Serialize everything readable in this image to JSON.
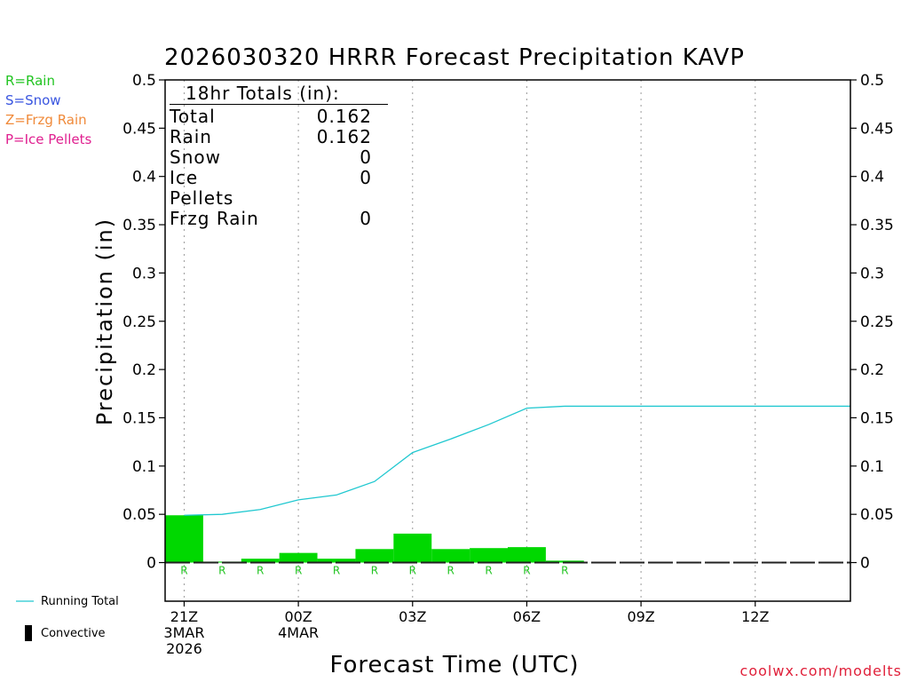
{
  "title": "2026030320 HRRR Forecast Precipitation KAVP",
  "legend_keys": [
    {
      "label": "R=Rain",
      "color": "#22c422"
    },
    {
      "label": "S=Snow",
      "color": "#3a56e0"
    },
    {
      "label": "Z=Frzg Rain",
      "color": "#f08a3a"
    },
    {
      "label": "P=Ice Pellets",
      "color": "#e02090"
    }
  ],
  "totals": {
    "header": "18hr Totals (in):",
    "rows": [
      {
        "label": "Total",
        "value": "0.162"
      },
      {
        "label": "Rain",
        "value": "0.162"
      },
      {
        "label": "Snow",
        "value": "0"
      },
      {
        "label": "Ice Pellets",
        "value": "0"
      },
      {
        "label": "Frzg Rain",
        "value": "0"
      }
    ]
  },
  "bottom_legend": {
    "running_total": "Running Total",
    "convective": "Convective"
  },
  "credit": "coolwx.com/modelts",
  "colors": {
    "rain_bar": "#00d800",
    "running_total": "#20c8d0",
    "rain_letter": "#22c422"
  },
  "chart_data": {
    "type": "bar",
    "title": "2026030320 HRRR Forecast Precipitation KAVP",
    "xlabel": "Forecast Time (UTC)",
    "ylabel": "Precipitation (in)",
    "ylim": [
      -0.04,
      0.5
    ],
    "y_ticks": [
      "0",
      "0.05",
      "0.1",
      "0.15",
      "0.2",
      "0.25",
      "0.3",
      "0.35",
      "0.4",
      "0.45",
      "0.5"
    ],
    "xlim_hours": [
      -0.5,
      17.5
    ],
    "x_ticks": [
      {
        "hour": 0,
        "lines": [
          "21Z",
          "3MAR",
          "2026"
        ]
      },
      {
        "hour": 3,
        "lines": [
          "00Z",
          "4MAR"
        ]
      },
      {
        "hour": 6,
        "lines": [
          "03Z"
        ]
      },
      {
        "hour": 9,
        "lines": [
          "06Z"
        ]
      },
      {
        "hour": 12,
        "lines": [
          "09Z"
        ]
      },
      {
        "hour": 15,
        "lines": [
          "12Z"
        ]
      }
    ],
    "hours": [
      0,
      1,
      2,
      3,
      4,
      5,
      6,
      7,
      8,
      9,
      10,
      11,
      12,
      13,
      14,
      15,
      16,
      17
    ],
    "series": [
      {
        "name": "Hourly Rain",
        "values": [
          0.049,
          0.001,
          0.004,
          0.01,
          0.004,
          0.014,
          0.03,
          0.014,
          0.015,
          0.016,
          0.002,
          0,
          0,
          0,
          0,
          0,
          0,
          0
        ]
      },
      {
        "name": "Running Total",
        "values": [
          0.049,
          0.05,
          0.055,
          0.065,
          0.07,
          0.084,
          0.114,
          0.128,
          0.143,
          0.16,
          0.162,
          0.162,
          0.162,
          0.162,
          0.162,
          0.162,
          0.162,
          0.162
        ]
      }
    ],
    "precip_type_letters": [
      {
        "hour": 0,
        "type": "R"
      },
      {
        "hour": 1,
        "type": "R"
      },
      {
        "hour": 2,
        "type": "R"
      },
      {
        "hour": 3,
        "type": "R"
      },
      {
        "hour": 4,
        "type": "R"
      },
      {
        "hour": 5,
        "type": "R"
      },
      {
        "hour": 6,
        "type": "R"
      },
      {
        "hour": 7,
        "type": "R"
      },
      {
        "hour": 8,
        "type": "R"
      },
      {
        "hour": 9,
        "type": "R"
      },
      {
        "hour": 10,
        "type": "R"
      }
    ],
    "grid": "vertical dotted at x ticks"
  }
}
